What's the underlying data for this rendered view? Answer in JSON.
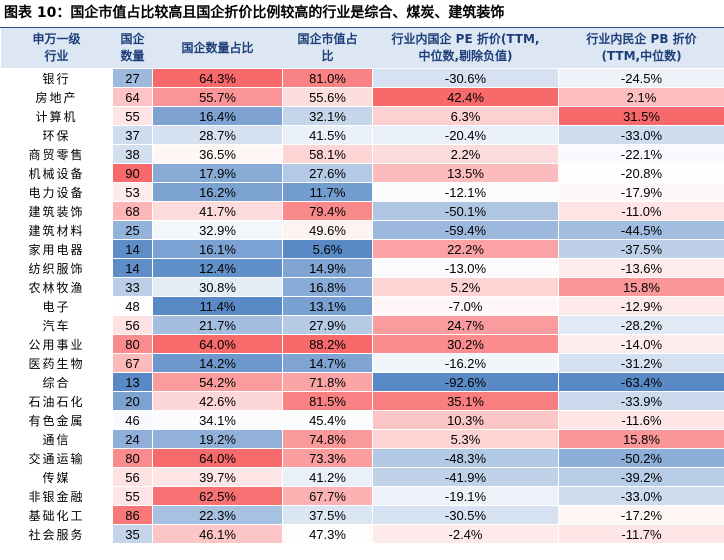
{
  "title": "图表 10：国企市值占比较高且国企折价比例较高的行业是综合、煤炭、建筑装饰",
  "table": {
    "headers": [
      [
        "申万一级",
        "行业"
      ],
      [
        "国企",
        "数量"
      ],
      [
        "国企数量占比"
      ],
      [
        "国企市值占",
        "比"
      ],
      [
        "行业内国企 PE 折价(TTM,",
        "中位数,剔除负值)"
      ],
      [
        "行业内民企 PB 折价",
        "(TTM,中位数)"
      ]
    ],
    "rows": [
      [
        "银行",
        "27",
        "64.3%",
        "81.0%",
        "-30.6%",
        "-24.5%"
      ],
      [
        "房地产",
        "64",
        "55.7%",
        "55.6%",
        "42.4%",
        "2.1%"
      ],
      [
        "计算机",
        "55",
        "16.4%",
        "32.1%",
        "6.3%",
        "31.5%"
      ],
      [
        "环保",
        "37",
        "28.7%",
        "41.5%",
        "-20.4%",
        "-33.0%"
      ],
      [
        "商贸零售",
        "38",
        "36.5%",
        "58.1%",
        "2.2%",
        "-22.1%"
      ],
      [
        "机械设备",
        "90",
        "17.9%",
        "27.6%",
        "13.5%",
        "-20.8%"
      ],
      [
        "电力设备",
        "53",
        "16.2%",
        "11.7%",
        "-12.1%",
        "-17.9%"
      ],
      [
        "建筑装饰",
        "68",
        "41.7%",
        "79.4%",
        "-50.1%",
        "-11.0%"
      ],
      [
        "建筑材料",
        "25",
        "32.9%",
        "49.6%",
        "-59.4%",
        "-44.5%"
      ],
      [
        "家用电器",
        "14",
        "16.1%",
        "5.6%",
        "22.2%",
        "-37.5%"
      ],
      [
        "纺织服饰",
        "14",
        "12.4%",
        "14.9%",
        "-13.0%",
        "-13.6%"
      ],
      [
        "农林牧渔",
        "33",
        "30.8%",
        "16.8%",
        "5.2%",
        "15.8%"
      ],
      [
        "电子",
        "48",
        "11.4%",
        "13.1%",
        "-7.0%",
        "-12.9%"
      ],
      [
        "汽车",
        "56",
        "21.7%",
        "27.9%",
        "24.7%",
        "-28.2%"
      ],
      [
        "公用事业",
        "80",
        "64.0%",
        "88.2%",
        "30.2%",
        "-14.0%"
      ],
      [
        "医药生物",
        "67",
        "14.2%",
        "14.7%",
        "-16.2%",
        "-31.2%"
      ],
      [
        "综合",
        "13",
        "54.2%",
        "71.8%",
        "-92.6%",
        "-63.4%"
      ],
      [
        "石油石化",
        "20",
        "42.6%",
        "81.5%",
        "35.1%",
        "-33.9%"
      ],
      [
        "有色金属",
        "46",
        "34.1%",
        "45.4%",
        "10.3%",
        "-11.6%"
      ],
      [
        "通信",
        "24",
        "19.2%",
        "74.8%",
        "5.3%",
        "15.8%"
      ],
      [
        "交通运输",
        "80",
        "64.0%",
        "73.3%",
        "-48.3%",
        "-50.2%"
      ],
      [
        "传媒",
        "56",
        "39.7%",
        "41.2%",
        "-41.9%",
        "-39.2%"
      ],
      [
        "非银金融",
        "55",
        "62.5%",
        "67.7%",
        "-19.1%",
        "-33.0%"
      ],
      [
        "基础化工",
        "86",
        "22.3%",
        "37.5%",
        "-30.5%",
        "-17.2%"
      ],
      [
        "社会服务",
        "35",
        "46.1%",
        "47.3%",
        "-2.4%",
        "-11.7%"
      ]
    ]
  }
}
